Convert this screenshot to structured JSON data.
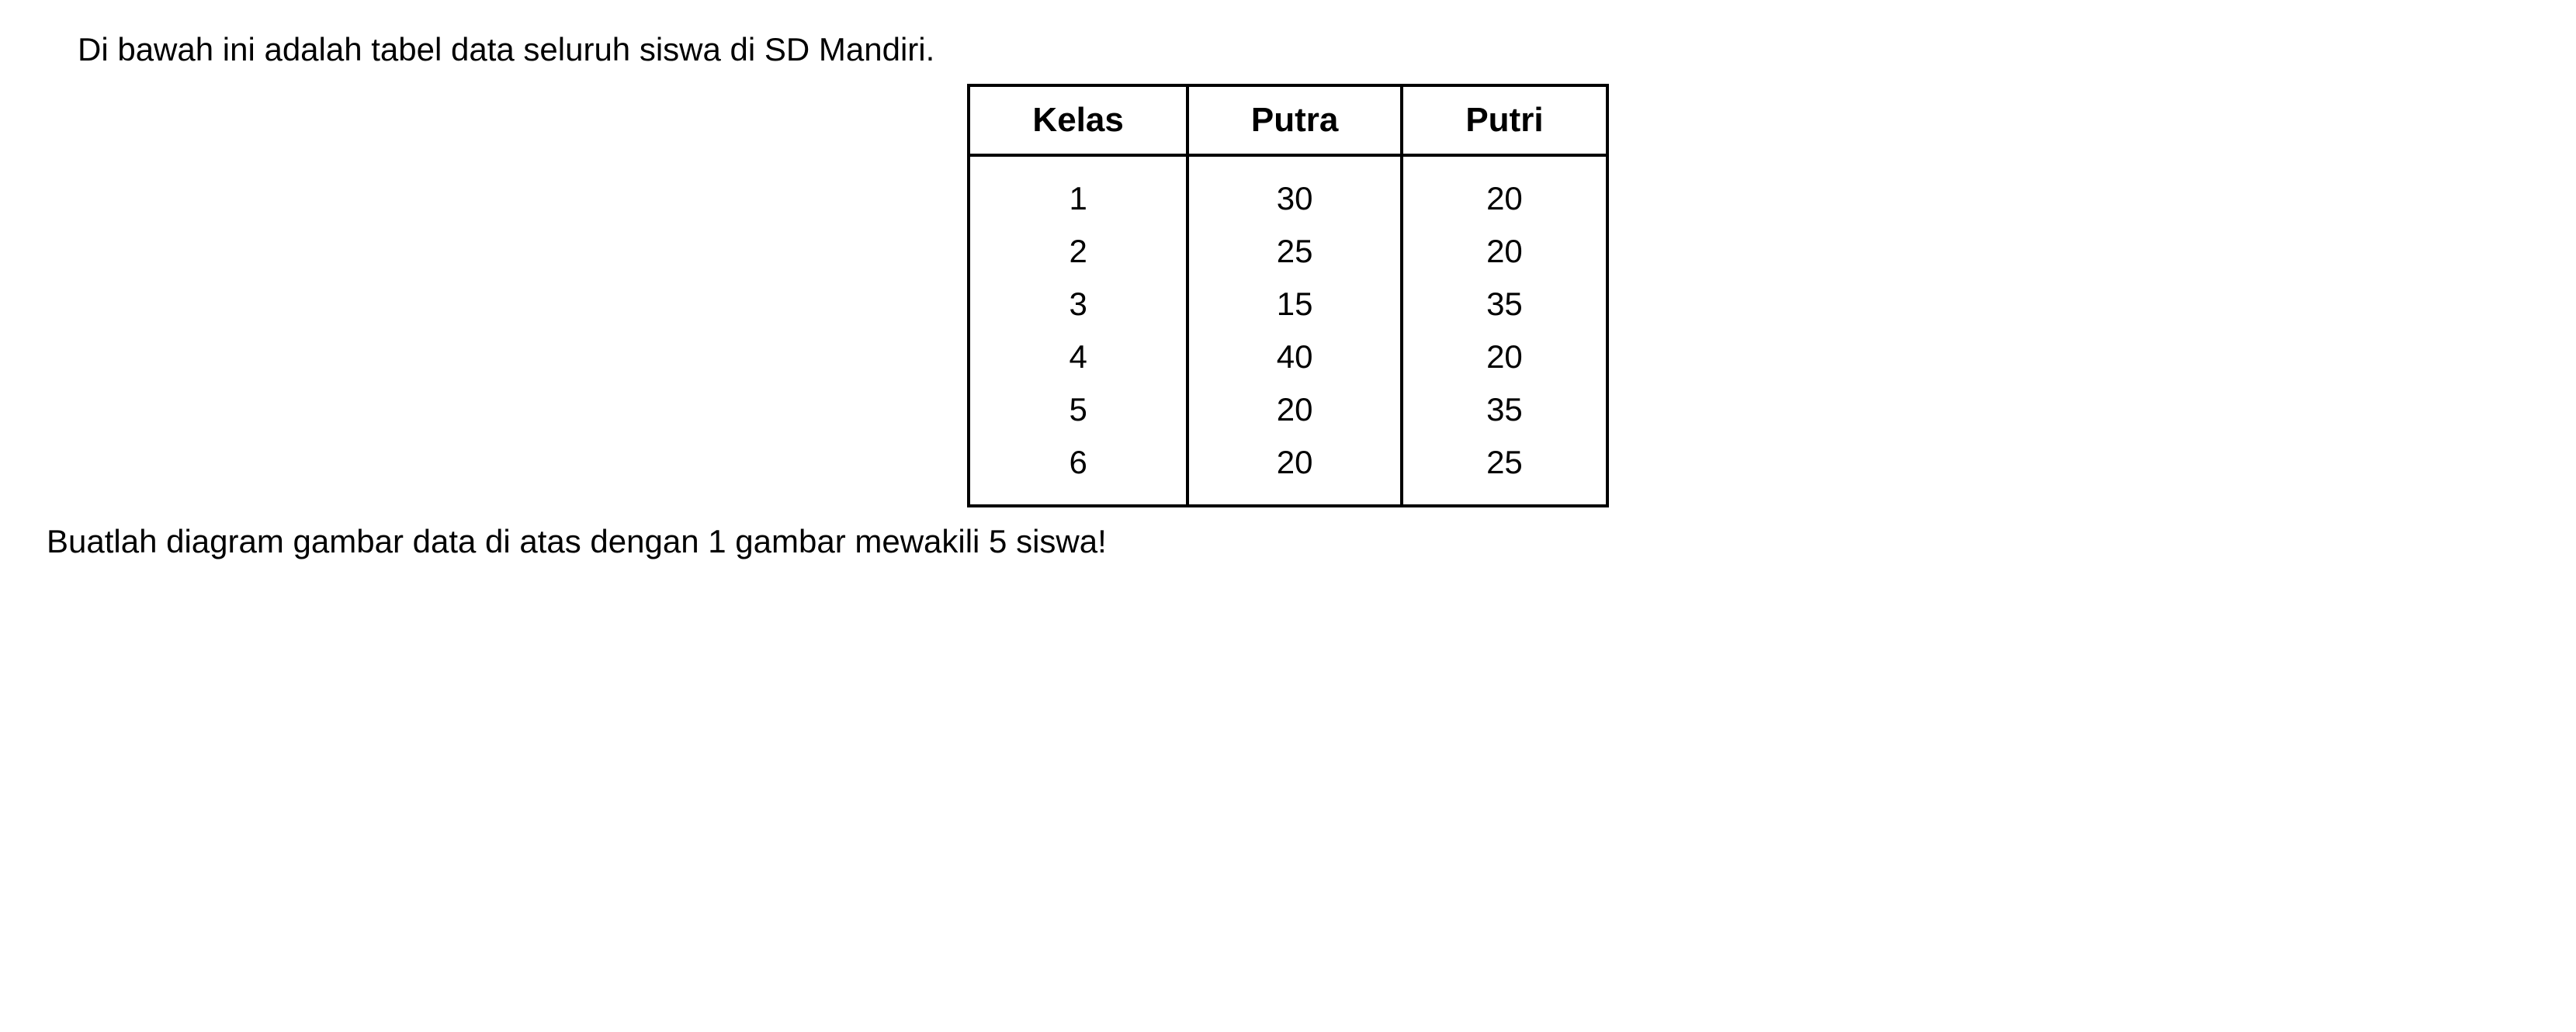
{
  "intro": "Di bawah ini adalah tabel data seluruh siswa di SD Mandiri.",
  "table": {
    "columns": [
      "Kelas",
      "Putra",
      "Putri"
    ],
    "rows": [
      [
        "1",
        "30",
        "20"
      ],
      [
        "2",
        "25",
        "20"
      ],
      [
        "3",
        "15",
        "35"
      ],
      [
        "4",
        "40",
        "20"
      ],
      [
        "5",
        "20",
        "35"
      ],
      [
        "6",
        "20",
        "25"
      ]
    ],
    "border_color": "#000000",
    "border_width": 4,
    "header_fontsize": 44,
    "header_fontweight": "bold",
    "cell_fontsize": 42,
    "text_color": "#000000",
    "background_color": "#ffffff"
  },
  "instruction": "Buatlah  diagram gambar data di atas dengan 1 gambar mewakili 5 siswa!",
  "typography": {
    "font_family": "Arial",
    "body_fontsize": 42,
    "text_color": "#000000"
  }
}
